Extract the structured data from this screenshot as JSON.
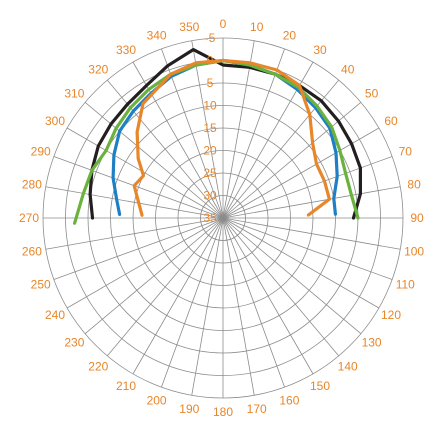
{
  "chart_data": {
    "type": "line",
    "projection": "polar",
    "title": "",
    "angle_ticks": [
      "0",
      "10",
      "20",
      "30",
      "40",
      "50",
      "60",
      "70",
      "80",
      "90",
      "100",
      "110",
      "120",
      "130",
      "140",
      "150",
      "160",
      "170",
      "180",
      "190",
      "200",
      "210",
      "220",
      "230",
      "240",
      "250",
      "260",
      "270",
      "280",
      "290",
      "300",
      "310",
      "320",
      "330",
      "340",
      "350"
    ],
    "angle_tick_values": [
      0,
      10,
      20,
      30,
      40,
      50,
      60,
      70,
      80,
      90,
      100,
      110,
      120,
      130,
      140,
      150,
      160,
      170,
      180,
      190,
      200,
      210,
      220,
      230,
      240,
      250,
      260,
      270,
      280,
      290,
      300,
      310,
      320,
      330,
      340,
      350
    ],
    "radial_ticks": [
      "-5",
      "0",
      "5",
      "10",
      "15",
      "20",
      "25",
      "30",
      "35"
    ],
    "radial_tick_values": [
      -5,
      0,
      5,
      10,
      15,
      20,
      25,
      30,
      35
    ],
    "radial_range": [
      35,
      -5
    ],
    "angle_direction": "clockwise",
    "zero_position": "top",
    "grid": true,
    "colors": {
      "grid": "#8c8c8c",
      "labels": "#e8862a",
      "background": "#ffffff"
    },
    "series": [
      {
        "color": "#231f20",
        "values": [
          {
            "angle": 270,
            "r": 6
          },
          {
            "angle": 280,
            "r": 5
          },
          {
            "angle": 290,
            "r": 4
          },
          {
            "angle": 300,
            "r": 3
          },
          {
            "angle": 310,
            "r": 2.5
          },
          {
            "angle": 320,
            "r": 2
          },
          {
            "angle": 330,
            "r": 1
          },
          {
            "angle": 340,
            "r": -1
          },
          {
            "angle": 350,
            "r": -3
          },
          {
            "angle": 0,
            "r": 1
          },
          {
            "angle": 10,
            "r": 1
          },
          {
            "angle": 20,
            "r": 1
          },
          {
            "angle": 30,
            "r": 1
          },
          {
            "angle": 40,
            "r": 1
          },
          {
            "angle": 50,
            "r": 1.5
          },
          {
            "angle": 60,
            "r": 2
          },
          {
            "angle": 70,
            "r": 2.5
          },
          {
            "angle": 80,
            "r": 4
          },
          {
            "angle": 90,
            "r": 6
          }
        ]
      },
      {
        "color": "#1f7fc4",
        "values": [
          {
            "angle": 272,
            "r": 12
          },
          {
            "angle": 280,
            "r": 11
          },
          {
            "angle": 290,
            "r": 9
          },
          {
            "angle": 300,
            "r": 7
          },
          {
            "angle": 310,
            "r": 5
          },
          {
            "angle": 320,
            "r": 4
          },
          {
            "angle": 330,
            "r": 3
          },
          {
            "angle": 340,
            "r": 1.5
          },
          {
            "angle": 350,
            "r": 0.5
          },
          {
            "angle": 0,
            "r": 0
          },
          {
            "angle": 10,
            "r": 0.5
          },
          {
            "angle": 20,
            "r": 1
          },
          {
            "angle": 30,
            "r": 2
          },
          {
            "angle": 40,
            "r": 3
          },
          {
            "angle": 50,
            "r": 4
          },
          {
            "angle": 60,
            "r": 6
          },
          {
            "angle": 70,
            "r": 8
          },
          {
            "angle": 80,
            "r": 10
          },
          {
            "angle": 88,
            "r": 10
          }
        ]
      },
      {
        "color": "#6ab23e",
        "values": [
          {
            "angle": 268,
            "r": 2
          },
          {
            "angle": 280,
            "r": 3.5
          },
          {
            "angle": 290,
            "r": 4
          },
          {
            "angle": 300,
            "r": 5
          },
          {
            "angle": 310,
            "r": 4
          },
          {
            "angle": 320,
            "r": 3
          },
          {
            "angle": 330,
            "r": 2
          },
          {
            "angle": 340,
            "r": 1
          },
          {
            "angle": 350,
            "r": 0.5
          },
          {
            "angle": 0,
            "r": 0
          },
          {
            "angle": 10,
            "r": 0.5
          },
          {
            "angle": 20,
            "r": 1
          },
          {
            "angle": 30,
            "r": 1.5
          },
          {
            "angle": 40,
            "r": 2.5
          },
          {
            "angle": 50,
            "r": 3.5
          },
          {
            "angle": 60,
            "r": 5
          },
          {
            "angle": 70,
            "r": 6
          },
          {
            "angle": 80,
            "r": 6
          },
          {
            "angle": 90,
            "r": 5
          }
        ]
      },
      {
        "color": "#e8862a",
        "values": [
          {
            "angle": 272,
            "r": 17
          },
          {
            "angle": 280,
            "r": 16
          },
          {
            "angle": 290,
            "r": 14
          },
          {
            "angle": 298,
            "r": 15
          },
          {
            "angle": 305,
            "r": 12
          },
          {
            "angle": 315,
            "r": 8
          },
          {
            "angle": 325,
            "r": 4
          },
          {
            "angle": 340,
            "r": 1
          },
          {
            "angle": 350,
            "r": 0
          },
          {
            "angle": 0,
            "r": 0
          },
          {
            "angle": 10,
            "r": 0
          },
          {
            "angle": 20,
            "r": 0
          },
          {
            "angle": 30,
            "r": 1
          },
          {
            "angle": 40,
            "r": 5
          },
          {
            "angle": 50,
            "r": 9
          },
          {
            "angle": 60,
            "r": 11
          },
          {
            "angle": 70,
            "r": 11
          },
          {
            "angle": 80,
            "r": 11
          },
          {
            "angle": 88,
            "r": 16
          }
        ]
      }
    ]
  }
}
